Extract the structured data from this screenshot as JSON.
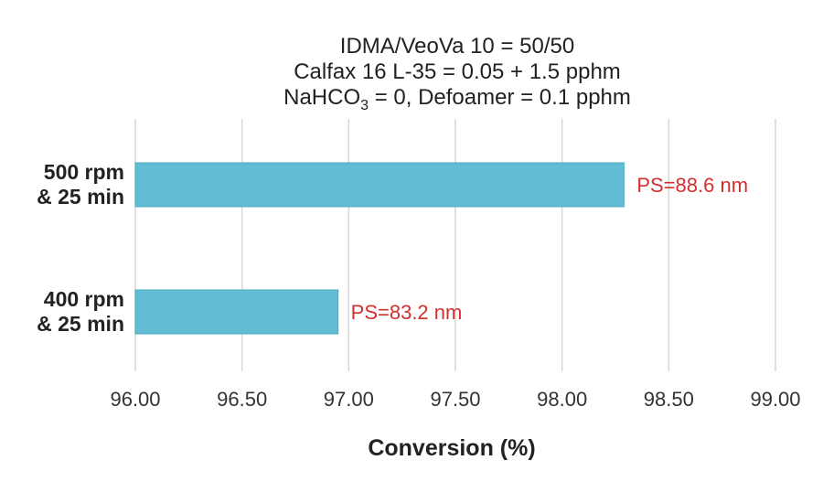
{
  "chart_data": {
    "type": "bar",
    "orientation": "horizontal",
    "title_lines": [
      {
        "text": "IDMA/VeoVa 10 = 50/50"
      },
      {
        "text": "Calfax 16 L-35 = 0.05 + 1.5 pphm"
      },
      {
        "text": "NaHCO",
        "sub": "3",
        "after": " = 0, Defoamer = 0.1 pphm"
      }
    ],
    "categories": [
      {
        "line1": "500 rpm",
        "line2": "& 25 min"
      },
      {
        "line1": "400 rpm",
        "line2": "& 25 min"
      }
    ],
    "values": [
      98.29,
      96.95
    ],
    "data_labels": [
      "PS=88.6 nm",
      "PS=83.2 nm"
    ],
    "xlabel": "Conversion (%)",
    "xlim": [
      96.0,
      99.0
    ],
    "xticks": [
      "96.00",
      "96.50",
      "97.00",
      "97.50",
      "98.00",
      "98.50",
      "99.00"
    ],
    "grid": "vertical",
    "legend": "none",
    "colors": {
      "bar": "#62bcd3",
      "bar_edge": "#4aaac2",
      "data_label": "#d32f2f",
      "grid": "#d9d9d9"
    }
  }
}
